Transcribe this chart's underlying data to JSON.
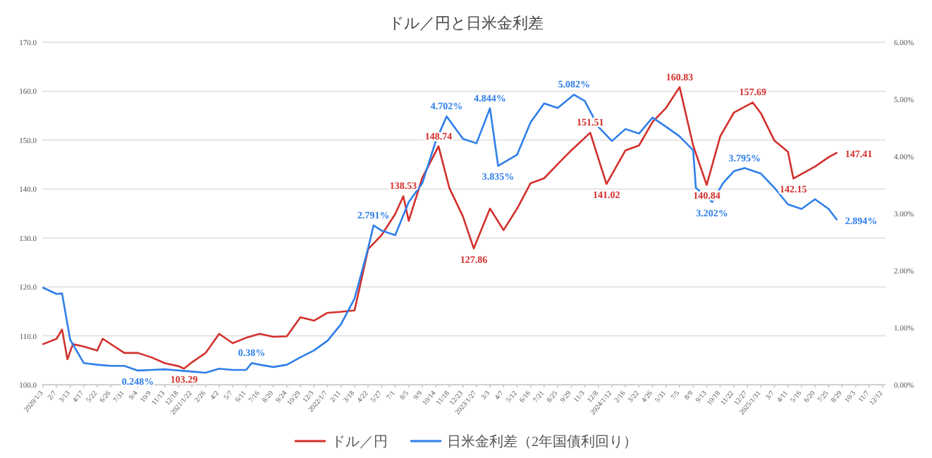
{
  "chart_data": {
    "type": "line",
    "title": "ドル／円と日米金利差",
    "legend": "bottom",
    "grid": "y",
    "xlim": [
      "2020-01-01",
      "2025-12-19"
    ],
    "xticks": [
      {
        "value": "2020-01-03",
        "label": "2020/1/3"
      },
      {
        "value": "2020-02-07",
        "label": "2/7"
      },
      {
        "value": "2020-03-13",
        "label": "3/13"
      },
      {
        "value": "2020-04-17",
        "label": "4/17"
      },
      {
        "value": "2020-05-22",
        "label": "5/22"
      },
      {
        "value": "2020-06-26",
        "label": "6/26"
      },
      {
        "value": "2020-07-31",
        "label": "7/31"
      },
      {
        "value": "2020-09-04",
        "label": "9/4"
      },
      {
        "value": "2020-10-09",
        "label": "10/9"
      },
      {
        "value": "2020-11-13",
        "label": "11/13"
      },
      {
        "value": "2020-12-18",
        "label": "12/18"
      },
      {
        "value": "2021-01-22",
        "label": "2021/1/22"
      },
      {
        "value": "2021-02-26",
        "label": "2/26"
      },
      {
        "value": "2021-04-02",
        "label": "4/2"
      },
      {
        "value": "2021-05-07",
        "label": "5/7"
      },
      {
        "value": "2021-06-11",
        "label": "6/11"
      },
      {
        "value": "2021-07-16",
        "label": "7/16"
      },
      {
        "value": "2021-08-20",
        "label": "8/20"
      },
      {
        "value": "2021-09-24",
        "label": "9/24"
      },
      {
        "value": "2021-10-29",
        "label": "10/29"
      },
      {
        "value": "2021-12-03",
        "label": "12/3"
      },
      {
        "value": "2022-01-07",
        "label": "2022/1/7"
      },
      {
        "value": "2022-02-11",
        "label": "2/11"
      },
      {
        "value": "2022-03-18",
        "label": "3/18"
      },
      {
        "value": "2022-04-22",
        "label": "4/22"
      },
      {
        "value": "2022-05-27",
        "label": "5/27"
      },
      {
        "value": "2022-07-01",
        "label": "7/1"
      },
      {
        "value": "2022-08-05",
        "label": "8/5"
      },
      {
        "value": "2022-09-09",
        "label": "9/9"
      },
      {
        "value": "2022-10-14",
        "label": "10/14"
      },
      {
        "value": "2022-11-18",
        "label": "11/18"
      },
      {
        "value": "2022-12-23",
        "label": "12/23"
      },
      {
        "value": "2023-01-27",
        "label": "2023/1/27"
      },
      {
        "value": "2023-03-03",
        "label": "3/3"
      },
      {
        "value": "2023-04-07",
        "label": "4/7"
      },
      {
        "value": "2023-05-12",
        "label": "5/12"
      },
      {
        "value": "2023-06-16",
        "label": "6/16"
      },
      {
        "value": "2023-07-21",
        "label": "7/21"
      },
      {
        "value": "2023-08-25",
        "label": "8/25"
      },
      {
        "value": "2023-09-29",
        "label": "9/29"
      },
      {
        "value": "2023-11-03",
        "label": "11/3"
      },
      {
        "value": "2023-12-08",
        "label": "12/8"
      },
      {
        "value": "2024-01-12",
        "label": "2024/1/12"
      },
      {
        "value": "2024-02-16",
        "label": "2/16"
      },
      {
        "value": "2024-03-22",
        "label": "3/22"
      },
      {
        "value": "2024-04-26",
        "label": "4/26"
      },
      {
        "value": "2024-05-31",
        "label": "5/31"
      },
      {
        "value": "2024-07-05",
        "label": "7/5"
      },
      {
        "value": "2024-08-09",
        "label": "8/9"
      },
      {
        "value": "2024-09-13",
        "label": "9/13"
      },
      {
        "value": "2024-10-18",
        "label": "10/18"
      },
      {
        "value": "2024-11-22",
        "label": "11/22"
      },
      {
        "value": "2024-12-27",
        "label": "12/27"
      },
      {
        "value": "2025-01-31",
        "label": "2025/1/31"
      },
      {
        "value": "2025-03-07",
        "label": "3/7"
      },
      {
        "value": "2025-04-11",
        "label": "4/11"
      },
      {
        "value": "2025-05-16",
        "label": "5/16"
      },
      {
        "value": "2025-06-20",
        "label": "6/20"
      },
      {
        "value": "2025-07-25",
        "label": "7/25"
      },
      {
        "value": "2025-08-29",
        "label": "8/29"
      },
      {
        "value": "2025-10-03",
        "label": "10/3"
      },
      {
        "value": "2025-11-07",
        "label": "11/7"
      },
      {
        "value": "2025-12-12",
        "label": "12/12"
      }
    ],
    "ylim": [
      100,
      170
    ],
    "yticks": [
      {
        "value": 100,
        "label": "100.0"
      },
      {
        "value": 110,
        "label": "110.0"
      },
      {
        "value": 120,
        "label": "120.0"
      },
      {
        "value": 130,
        "label": "130.0"
      },
      {
        "value": 140,
        "label": "140.0"
      },
      {
        "value": 150,
        "label": "150.0"
      },
      {
        "value": 160,
        "label": "160.0"
      },
      {
        "value": 170,
        "label": "170.0"
      }
    ],
    "y2lim": [
      0,
      6
    ],
    "y2ticks": [
      {
        "value": 0,
        "label": "0.00%"
      },
      {
        "value": 1,
        "label": "1.00%"
      },
      {
        "value": 2,
        "label": "2.00%"
      },
      {
        "value": 3,
        "label": "3.00%"
      },
      {
        "value": 4,
        "label": "4.00%"
      },
      {
        "value": 5,
        "label": "5.00%"
      },
      {
        "value": 6,
        "label": "6.00%"
      }
    ],
    "series": [
      {
        "name": "ドル／円",
        "color": "#d2302c",
        "x": [
          "2020-01-03",
          "2020-02-07",
          "2020-02-21",
          "2020-03-06",
          "2020-03-20",
          "2020-04-17",
          "2020-05-22",
          "2020-06-05",
          "2020-07-31",
          "2020-09-04",
          "2020-10-09",
          "2020-11-13",
          "2020-12-18",
          "2021-01-01",
          "2021-01-22",
          "2021-02-26",
          "2021-04-02",
          "2021-05-07",
          "2021-06-11",
          "2021-07-16",
          "2021-08-20",
          "2021-09-24",
          "2021-10-29",
          "2021-12-03",
          "2022-01-07",
          "2022-02-11",
          "2022-03-18",
          "2022-04-22",
          "2022-05-27",
          "2022-07-01",
          "2022-07-22",
          "2022-08-05",
          "2022-09-09",
          "2022-10-21",
          "2022-11-18",
          "2022-12-23",
          "2023-01-20",
          "2023-03-03",
          "2023-04-07",
          "2023-05-12",
          "2023-06-16",
          "2023-07-21",
          "2023-08-25",
          "2023-09-29",
          "2023-11-17",
          "2023-12-29",
          "2024-02-16",
          "2024-03-22",
          "2024-04-26",
          "2024-05-31",
          "2024-07-05",
          "2024-08-09",
          "2024-09-13",
          "2024-10-18",
          "2024-11-22",
          "2025-01-10",
          "2025-01-31",
          "2025-03-07",
          "2025-04-11",
          "2025-04-25",
          "2025-06-20",
          "2025-07-25",
          "2025-08-15"
        ],
        "values": [
          108.3,
          109.4,
          111.3,
          105.2,
          108.3,
          107.8,
          107.0,
          109.4,
          106.5,
          106.5,
          105.6,
          104.4,
          103.8,
          103.29,
          104.6,
          106.5,
          110.4,
          108.5,
          109.6,
          110.4,
          109.8,
          109.9,
          113.8,
          113.1,
          114.7,
          114.9,
          115.2,
          127.7,
          130.6,
          134.9,
          138.53,
          133.5,
          142.3,
          148.74,
          140.2,
          134.4,
          127.86,
          136.0,
          131.6,
          136.0,
          141.2,
          142.2,
          145.1,
          147.9,
          151.51,
          141.02,
          147.9,
          148.9,
          153.7,
          156.6,
          160.83,
          148.9,
          140.84,
          150.8,
          155.6,
          157.69,
          155.5,
          149.9,
          147.6,
          142.15,
          144.6,
          146.5,
          147.41
        ],
        "value_labels": [
          null,
          null,
          null,
          null,
          null,
          null,
          null,
          null,
          null,
          null,
          null,
          null,
          null,
          "103.29",
          null,
          null,
          null,
          null,
          null,
          null,
          null,
          null,
          null,
          null,
          null,
          null,
          null,
          null,
          null,
          null,
          "138.53",
          null,
          null,
          "148.74",
          null,
          null,
          "127.86",
          null,
          null,
          null,
          null,
          null,
          null,
          null,
          "151.51",
          "141.02",
          null,
          null,
          null,
          null,
          "160.83",
          null,
          "140.84",
          null,
          null,
          "157.69",
          null,
          null,
          null,
          "142.15",
          null,
          null,
          "147.41"
        ]
      },
      {
        "name": "日米金利差（2年国債利回り）",
        "color": "#2f7fe8",
        "axis": "y2",
        "x": [
          "2020-01-03",
          "2020-02-07",
          "2020-02-21",
          "2020-03-13",
          "2020-04-17",
          "2020-05-22",
          "2020-06-26",
          "2020-07-31",
          "2020-09-04",
          "2020-10-09",
          "2020-11-13",
          "2020-12-18",
          "2021-01-22",
          "2021-02-26",
          "2021-04-02",
          "2021-05-07",
          "2021-06-11",
          "2021-06-25",
          "2021-07-16",
          "2021-08-20",
          "2021-09-24",
          "2021-10-29",
          "2021-12-03",
          "2022-01-07",
          "2022-02-11",
          "2022-03-18",
          "2022-04-22",
          "2022-05-06",
          "2022-05-27",
          "2022-07-01",
          "2022-08-05",
          "2022-09-09",
          "2022-10-14",
          "2022-11-11",
          "2022-12-23",
          "2023-01-27",
          "2023-03-03",
          "2023-03-24",
          "2023-05-12",
          "2023-06-16",
          "2023-07-21",
          "2023-08-25",
          "2023-10-06",
          "2023-11-03",
          "2023-12-08",
          "2024-01-12",
          "2024-02-16",
          "2024-03-22",
          "2024-04-26",
          "2024-05-31",
          "2024-07-05",
          "2024-08-09",
          "2024-08-16",
          "2024-09-27",
          "2024-10-25",
          "2024-11-22",
          "2024-12-20",
          "2025-01-31",
          "2025-03-07",
          "2025-04-11",
          "2025-05-16",
          "2025-06-20",
          "2025-07-25",
          "2025-08-15"
        ],
        "values": [
          1.7,
          1.59,
          1.6,
          0.79,
          0.38,
          0.35,
          0.33,
          0.33,
          0.248,
          0.26,
          0.27,
          0.25,
          0.23,
          0.21,
          0.28,
          0.26,
          0.26,
          0.38,
          0.35,
          0.31,
          0.35,
          0.48,
          0.6,
          0.77,
          1.06,
          1.51,
          2.39,
          2.791,
          2.7,
          2.62,
          3.2,
          3.53,
          4.27,
          4.702,
          4.31,
          4.23,
          4.844,
          3.835,
          4.03,
          4.6,
          4.93,
          4.85,
          5.082,
          4.97,
          4.52,
          4.27,
          4.48,
          4.4,
          4.68,
          4.52,
          4.35,
          4.11,
          3.45,
          3.202,
          3.53,
          3.74,
          3.795,
          3.7,
          3.45,
          3.16,
          3.08,
          3.25,
          3.08,
          2.894
        ],
        "value_labels": [
          null,
          null,
          null,
          null,
          null,
          null,
          null,
          null,
          "0.248%",
          null,
          null,
          null,
          null,
          null,
          null,
          null,
          null,
          "0.38%",
          null,
          null,
          null,
          null,
          null,
          null,
          null,
          null,
          null,
          "2.791%",
          null,
          null,
          null,
          null,
          null,
          "4.702%",
          null,
          null,
          "4.844%",
          "3.835%",
          null,
          null,
          null,
          null,
          "5.082%",
          null,
          null,
          null,
          null,
          null,
          null,
          null,
          null,
          null,
          null,
          "3.202%",
          null,
          null,
          "3.795%",
          null,
          null,
          null,
          null,
          null,
          null,
          "2.894%"
        ]
      }
    ]
  }
}
